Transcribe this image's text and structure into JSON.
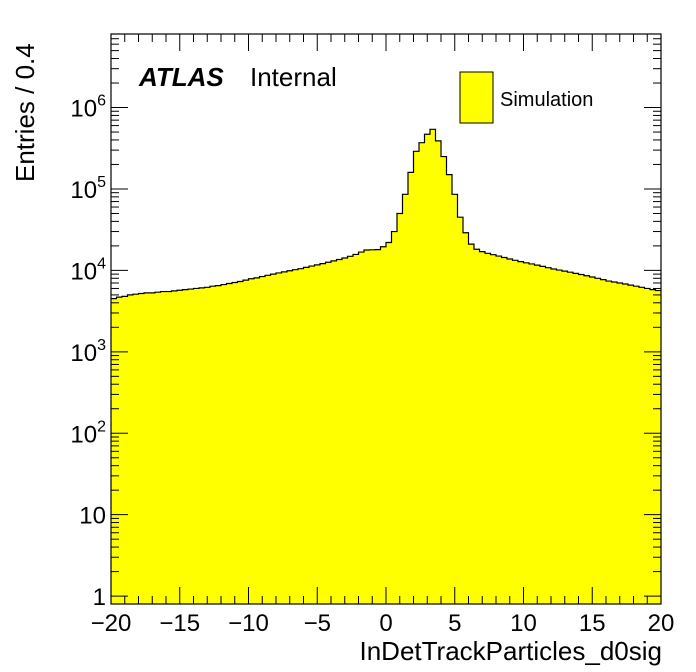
{
  "chart_data": {
    "type": "bar",
    "subtype": "histogram",
    "xlabel": "InDetTrackParticles_d0sig",
    "ylabel": "Entries / 0.4",
    "y_scale": "log",
    "xlim": [
      -20,
      20
    ],
    "ylim": [
      0.8,
      8000000
    ],
    "x_ticks": [
      -20,
      -15,
      -10,
      -5,
      0,
      5,
      10,
      15,
      20
    ],
    "x_tick_labels": [
      "−20",
      "−15",
      "−10",
      "−5",
      "0",
      "5",
      "10",
      "15",
      "20"
    ],
    "y_ticks": [
      {
        "value": 1,
        "base": "1",
        "exp": ""
      },
      {
        "value": 10,
        "base": "10",
        "exp": ""
      },
      {
        "value": 100,
        "base": "10",
        "exp": "2"
      },
      {
        "value": 1000,
        "base": "10",
        "exp": "3"
      },
      {
        "value": 10000,
        "base": "10",
        "exp": "4"
      },
      {
        "value": 100000,
        "base": "10",
        "exp": "5"
      },
      {
        "value": 1000000,
        "base": "10",
        "exp": "6"
      }
    ],
    "atlas_label": "ATLAS",
    "atlas_status": "Internal",
    "legend": [
      {
        "name": "Simulation",
        "color": "#ffff00"
      }
    ],
    "legend_position": "top-right",
    "fill_color": "#ffff00",
    "line_color": "#000000",
    "bin_width": 0.4,
    "bins_left_edge": -20,
    "values": [
      4500,
      4700,
      4800,
      5000,
      5100,
      5200,
      5300,
      5300,
      5400,
      5500,
      5500,
      5600,
      5700,
      5800,
      5900,
      6000,
      6100,
      6200,
      6400,
      6500,
      6700,
      6900,
      7100,
      7300,
      7600,
      7900,
      8100,
      8400,
      8700,
      9000,
      9300,
      9600,
      9900,
      10200,
      10500,
      10900,
      11300,
      11700,
      12100,
      12600,
      13100,
      13600,
      14200,
      14900,
      15700,
      16800,
      17800,
      17900,
      18000,
      19500,
      22000,
      30000,
      50000,
      86000,
      160000,
      290000,
      370000,
      470000,
      540000,
      390000,
      250000,
      150000,
      86000,
      45000,
      29000,
      21000,
      18200,
      17000,
      16200,
      15600,
      15000,
      14400,
      13800,
      13300,
      12800,
      12400,
      12000,
      11600,
      11200,
      10800,
      10400,
      10100,
      9800,
      9500,
      9200,
      8900,
      8600,
      8300,
      8000,
      7700,
      7400,
      7200,
      7000,
      6800,
      6600,
      6400,
      6200,
      6000,
      5800,
      5650
    ]
  }
}
